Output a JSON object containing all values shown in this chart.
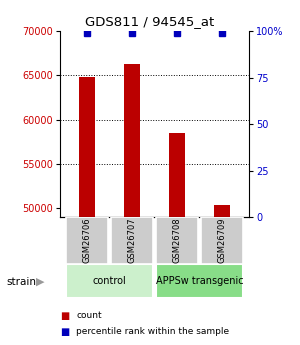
{
  "title": "GDS811 / 94545_at",
  "samples": [
    "GSM26706",
    "GSM26707",
    "GSM26708",
    "GSM26709"
  ],
  "count_values": [
    64800,
    66300,
    58500,
    50350
  ],
  "percentile_values": [
    99,
    99,
    99,
    99
  ],
  "ylim_left": [
    49000,
    70000
  ],
  "ylim_right": [
    0,
    100
  ],
  "yticks_left": [
    50000,
    55000,
    60000,
    65000,
    70000
  ],
  "yticks_right": [
    0,
    25,
    50,
    75,
    100
  ],
  "bar_color": "#bb0000",
  "percentile_color": "#0000bb",
  "left_tick_color": "#cc0000",
  "right_tick_color": "#0000cc",
  "groups": [
    {
      "label": "control",
      "samples": [
        0,
        1
      ],
      "color": "#ccf0cc"
    },
    {
      "label": "APPSw transgenic",
      "samples": [
        2,
        3
      ],
      "color": "#88dd88"
    }
  ],
  "bar_width": 0.35,
  "strain_label": "strain",
  "legend_count_label": "count",
  "legend_percentile_label": "percentile rank within the sample",
  "bg_color": "#ffffff",
  "gsm_box_color": "#cccccc",
  "dotted_lines": [
    55000,
    60000,
    65000
  ]
}
